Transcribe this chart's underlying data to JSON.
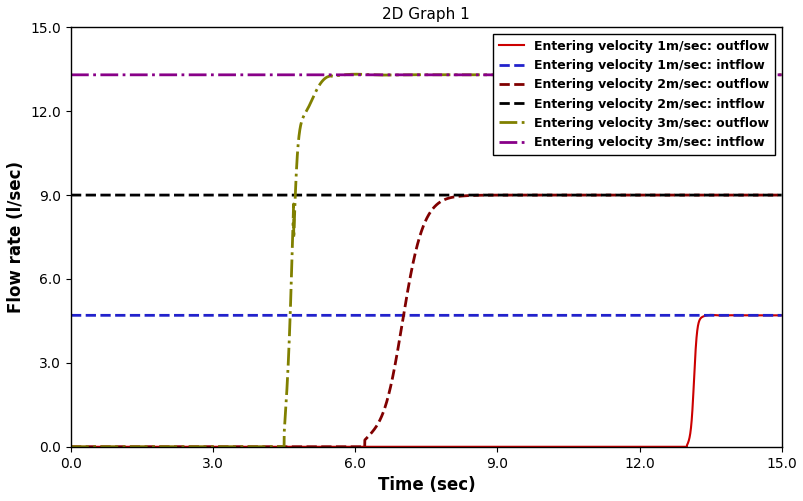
{
  "title": "2D Graph 1",
  "xlabel": "Time (sec)",
  "ylabel": "Flow rate (l/sec)",
  "xlim": [
    0.0,
    15.0
  ],
  "ylim": [
    0.0,
    15.0
  ],
  "xticks": [
    0.0,
    3.0,
    6.0,
    9.0,
    12.0,
    15.0
  ],
  "yticks": [
    0.0,
    3.0,
    6.0,
    9.0,
    12.0,
    15.0
  ],
  "line_1m_outflow": {
    "label": "Entering velocity 1m/sec: outflow",
    "color": "#cc0000",
    "linestyle": "solid",
    "linewidth": 1.5,
    "rise_start": 13.0,
    "flat_value": 4.7
  },
  "line_1m_intflow": {
    "label": "Entering velocity 1m/sec: intflow",
    "color": "#2222cc",
    "linestyle": "dashed",
    "linewidth": 2.0,
    "flat_value": 4.7
  },
  "line_2m_outflow": {
    "label": "Entering velocity 2m/sec: outflow",
    "color": "#800000",
    "linestyle": "dashed",
    "linewidth": 2.0,
    "rise_start": 6.2,
    "flat_value": 9.0
  },
  "line_2m_intflow": {
    "label": "Entering velocity 2m/sec: intflow",
    "color": "#000000",
    "linestyle": "dashed",
    "linewidth": 2.0,
    "flat_value": 9.0
  },
  "line_3m_outflow": {
    "label": "Entering velocity 3m/sec: outflow",
    "color": "#808000",
    "linestyle": "dashdot",
    "linewidth": 2.0,
    "rise_start": 4.5,
    "flat_value": 13.3,
    "overshoot_peak": 11.9,
    "overshoot_time": 0.25
  },
  "line_3m_intflow": {
    "label": "Entering velocity 3m/sec: intflow",
    "color": "#880088",
    "linestyle": "dashdot",
    "linewidth": 2.0,
    "flat_value": 13.3
  },
  "legend_fontsize": 9,
  "title_fontsize": 11,
  "axis_label_fontsize": 12,
  "tick_fontsize": 10,
  "background_color": "#ffffff"
}
